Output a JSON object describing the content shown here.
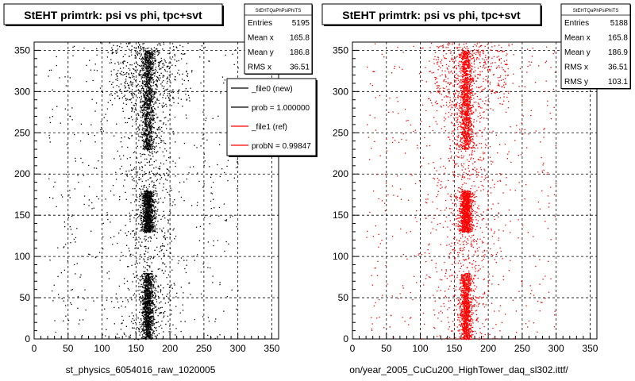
{
  "footer_text": "",
  "chart_data": [
    {
      "type": "scatter",
      "title": "StEHT primtrk: psi vs phi, tpc+svt",
      "xlabel": "st_physics_6054016_raw_1020005",
      "ylabel": "",
      "xlim": [
        0,
        360
      ],
      "ylim": [
        0,
        360
      ],
      "xticks": [
        "0",
        "50",
        "100",
        "150",
        "200",
        "250",
        "300",
        "350"
      ],
      "yticks": [
        "0",
        "50",
        "100",
        "150",
        "200",
        "250",
        "300",
        "350"
      ],
      "grid": true,
      "marker_color": "#000000",
      "stats": {
        "title": "StEHTQaPhPsiPhiTS",
        "rows": [
          {
            "label": "Entries",
            "value": "5195"
          },
          {
            "label": "Mean x",
            "value": "165.8"
          },
          {
            "label": "Mean y",
            "value": "186.8"
          },
          {
            "label": "RMS x",
            "value": "36.51"
          }
        ]
      },
      "legend": {
        "placement": "top-right",
        "entries": [
          {
            "label": "_file0 (new)",
            "color": "#000000"
          },
          {
            "label": "prob = 1.000000",
            "color": "#000000"
          },
          {
            "label": "_file1 (ref)",
            "color": "#ff0000"
          },
          {
            "label": "probN = 0.99847",
            "color": "#ff0000"
          }
        ]
      },
      "distribution": {
        "entries": 5195,
        "band_x_center": 167,
        "band_x_width": 10,
        "dense_y_ranges": [
          [
            0,
            80
          ],
          [
            130,
            180
          ],
          [
            230,
            350
          ]
        ]
      }
    },
    {
      "type": "scatter",
      "title": "StEHT primtrk: psi vs phi, tpc+svt",
      "xlabel": "on/year_2005_CuCu200_HighTower_daq_sl302.ittf/",
      "ylabel": "",
      "xlim": [
        0,
        360
      ],
      "ylim": [
        0,
        360
      ],
      "xticks": [
        "0",
        "50",
        "100",
        "150",
        "200",
        "250",
        "300",
        "350"
      ],
      "yticks": [
        "0",
        "50",
        "100",
        "150",
        "200",
        "250",
        "300",
        "350"
      ],
      "grid": true,
      "marker_color": "#ff0000",
      "stats": {
        "title": "StEHTQaPhPsiPhiTS",
        "rows": [
          {
            "label": "Entries",
            "value": "5188"
          },
          {
            "label": "Mean x",
            "value": "165.8"
          },
          {
            "label": "Mean y",
            "value": "186.9"
          },
          {
            "label": "RMS x",
            "value": "36.51"
          },
          {
            "label": "RMS y",
            "value": "103.1"
          }
        ]
      },
      "distribution": {
        "entries": 5188,
        "band_x_center": 167,
        "band_x_width": 10,
        "dense_y_ranges": [
          [
            0,
            80
          ],
          [
            130,
            180
          ],
          [
            230,
            350
          ]
        ]
      }
    }
  ]
}
